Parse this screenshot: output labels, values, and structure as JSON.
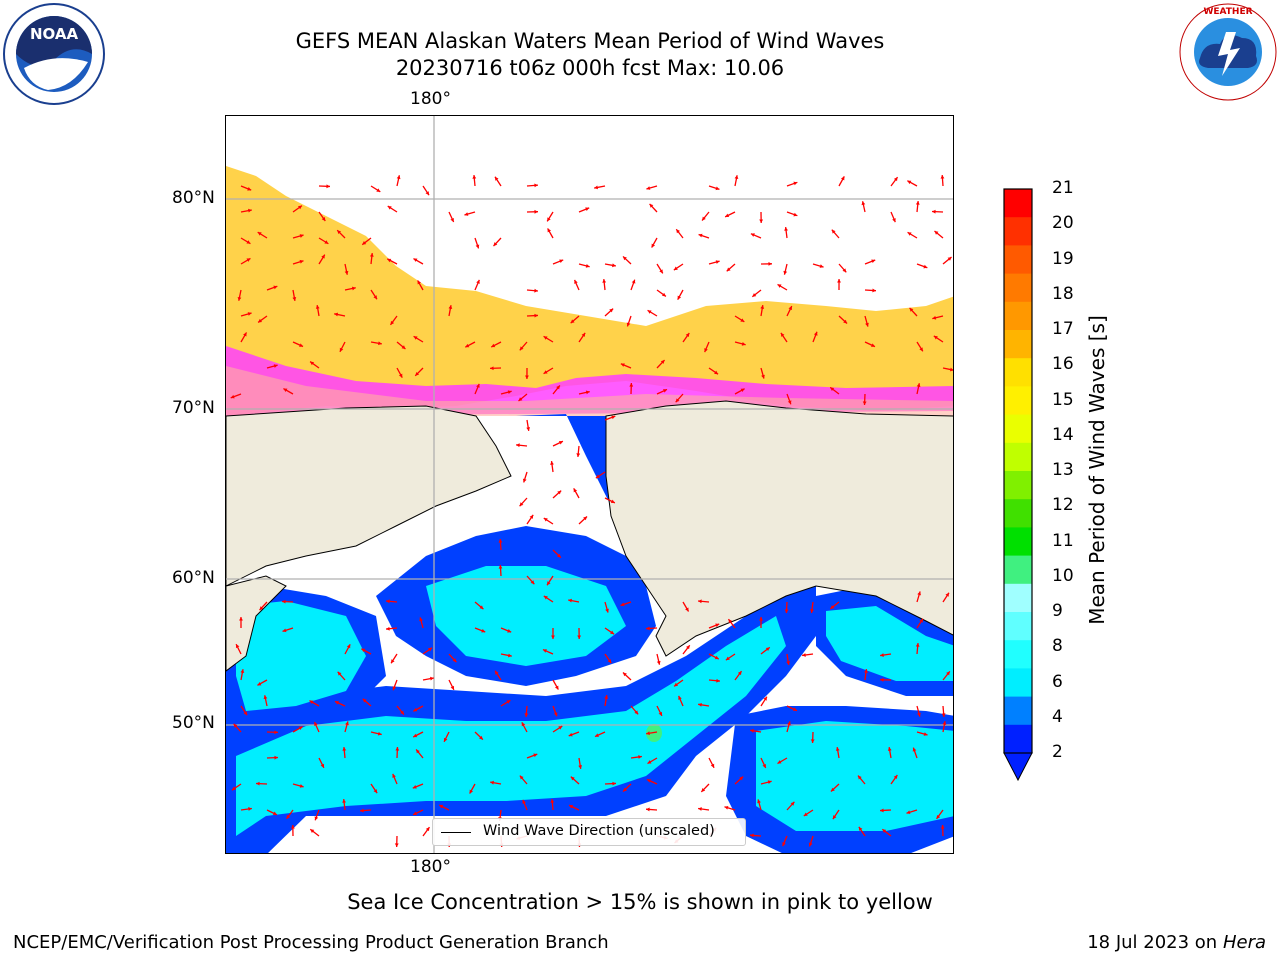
{
  "header": {
    "title_line1": "GEFS MEAN Alaskan Waters Mean Period of Wind Waves",
    "title_line2": "20230716 t06z 000h fcst   Max: 10.06"
  },
  "logos": {
    "noaa_text": "NOAA",
    "noaa_ring": "NATIONAL OCEANIC AND ATMOSPHERIC ADMINISTRATION · U.S. DEPARTMENT OF COMMERCE",
    "nws_ring": "NATIONAL WEATHER SERVICE"
  },
  "map": {
    "lon_top_label": "180°",
    "lon_bottom_label": "180°",
    "lat_labels": [
      "80°N",
      "70°N",
      "60°N",
      "50°N"
    ],
    "legend_label": "Wind Wave Direction (unscaled)",
    "colors": {
      "land": "#efebdc",
      "ocean_no_data": "#ffffff",
      "gridline": "#b0b0b0",
      "arrow": "#ff0000",
      "ice_low": "#ff40ff",
      "ice_mid": "#ffb0a0",
      "ice_high": "#ffd040"
    }
  },
  "colorbar": {
    "label": "Mean Period of Wind Waves [s]",
    "ticks": [
      "21",
      "20",
      "19",
      "18",
      "17",
      "16",
      "15",
      "14",
      "13",
      "12",
      "11",
      "10",
      "9",
      "8",
      "6",
      "4",
      "2"
    ],
    "colors": [
      "#ff0000",
      "#ff3000",
      "#ff5a00",
      "#ff7a00",
      "#ff9800",
      "#ffb400",
      "#ffe000",
      "#fff000",
      "#eaff00",
      "#c0ff00",
      "#80f000",
      "#40e000",
      "#00e000",
      "#40f080",
      "#a0ffff",
      "#60ffff",
      "#20ffff",
      "#00eeff",
      "#0080ff",
      "#0020ff"
    ]
  },
  "footer": {
    "note": "Sea Ice Concentration > 15% is shown in pink to yellow",
    "org": "NCEP/EMC/Verification Post Processing Product Generation Branch",
    "date": "18 Jul 2023 on ",
    "machine": "Hera"
  }
}
